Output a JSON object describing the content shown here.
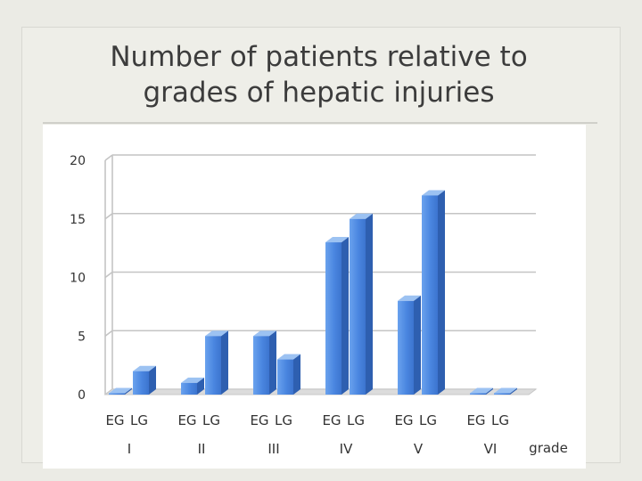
{
  "slide": {
    "title_line1": "Number of patients relative to",
    "title_line2": "grades of hepatic injuries"
  },
  "colors": {
    "bar_front": "#4a86e0",
    "bar_side": "#2e5fb0",
    "bar_top": "#9cc2f2",
    "gridline": "#c4c4c4",
    "background": "#ebebe5"
  },
  "chart_data": {
    "type": "bar",
    "style": "3d-clustered-column",
    "title": "",
    "xlabel": "grade",
    "ylabel": "",
    "ylim": [
      0,
      20
    ],
    "yticks": [
      0,
      5,
      10,
      15,
      20
    ],
    "grid": true,
    "legend": "none",
    "groups": [
      "I",
      "II",
      "III",
      "IV",
      "V",
      "VI"
    ],
    "subcategories": [
      "EG",
      "LG"
    ],
    "series": [
      {
        "name": "EG",
        "values": [
          0,
          1,
          5,
          13,
          8,
          0
        ]
      },
      {
        "name": "LG",
        "values": [
          2,
          5,
          3,
          15,
          17,
          0
        ]
      }
    ]
  }
}
